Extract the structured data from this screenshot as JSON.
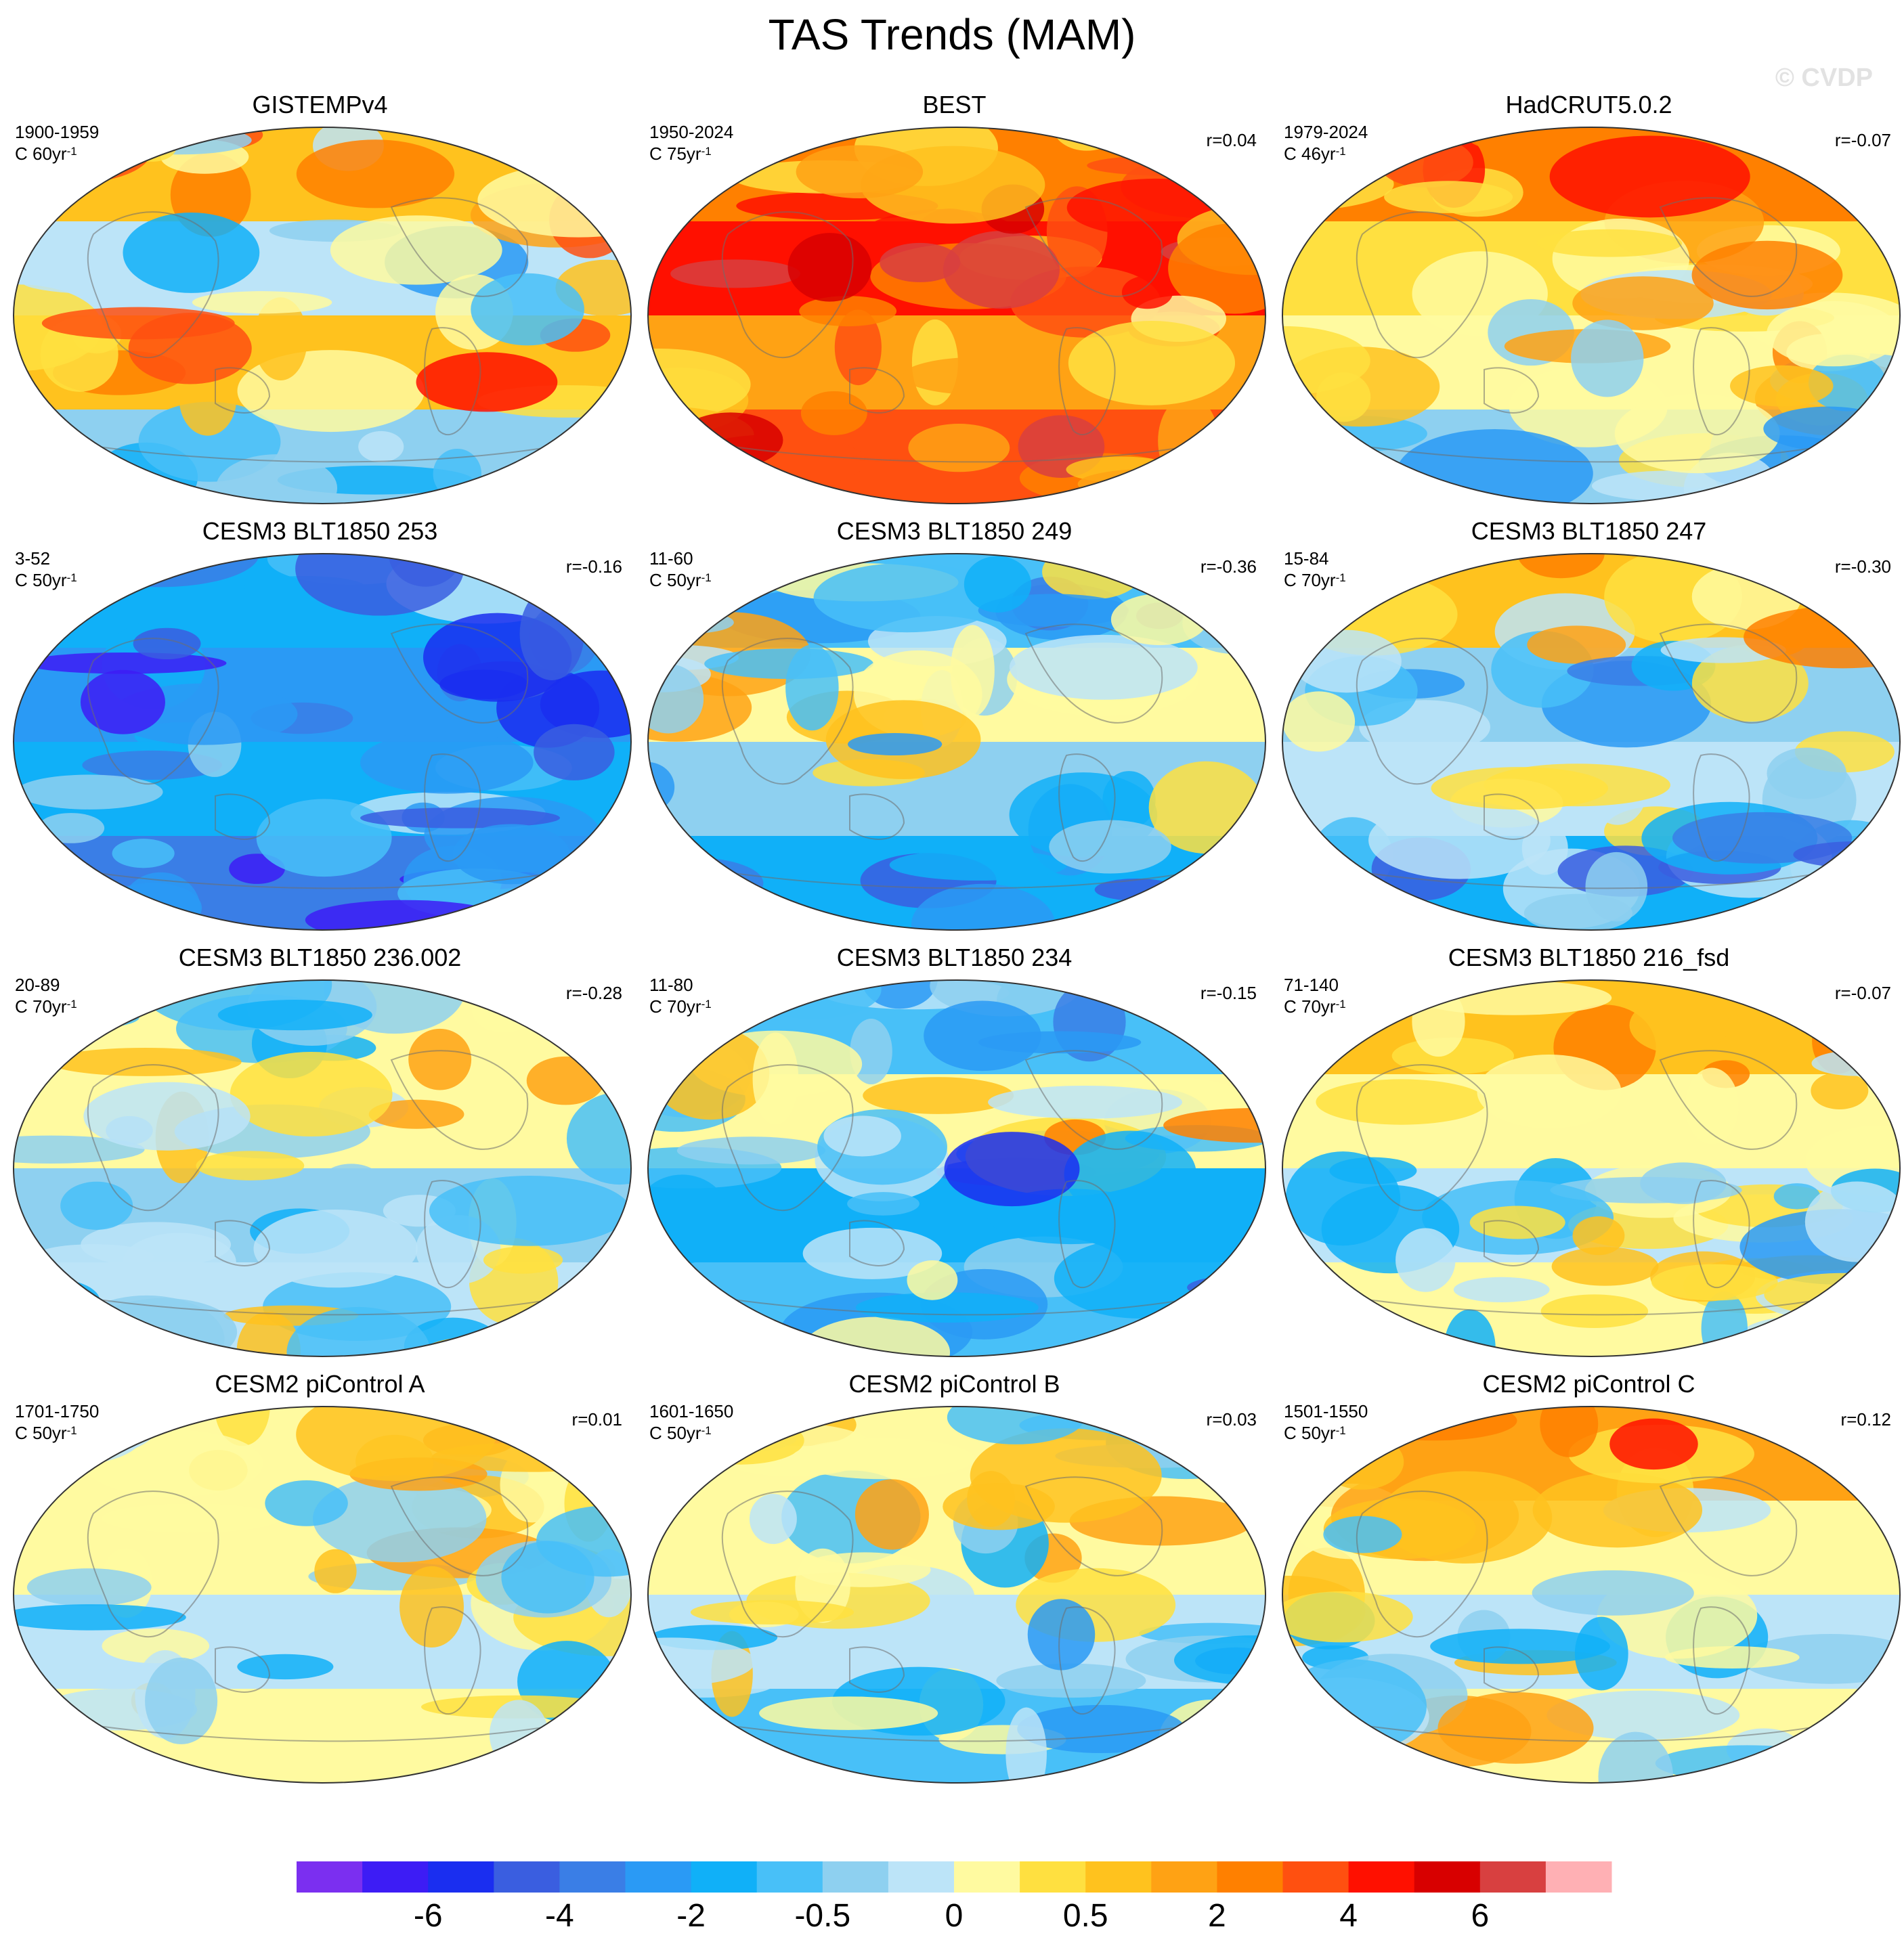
{
  "title": "TAS Trends (MAM)",
  "watermark": "© CVDP",
  "chart_data": {
    "type": "heatmap",
    "title": "TAS Trends (MAM)",
    "colorbar": {
      "tick_labels": [
        "-6",
        "-4",
        "-2",
        "-0.5",
        "0",
        "0.5",
        "2",
        "4",
        "6"
      ],
      "colors": [
        "#7b2ff0",
        "#3d1cf5",
        "#1a2ef0",
        "#3a5ee0",
        "#3a7ee6",
        "#2a9af5",
        "#10b0f8",
        "#48c0f8",
        "#8ed0f0",
        "#bce4f8",
        "#fffaa0",
        "#ffe040",
        "#ffc21e",
        "#ffa214",
        "#ff8000",
        "#ff5010",
        "#ff1000",
        "#d80000",
        "#d84040",
        "#ffb0b4"
      ]
    },
    "panels": [
      {
        "title": "GISTEMPv4",
        "period": "1900-1959",
        "units": "C 60yr",
        "units_sup": "-1",
        "r": "",
        "palette": [
          0.62,
          0.45,
          0.65,
          0.4
        ]
      },
      {
        "title": "BEST",
        "period": "1950-2024",
        "units": "C 75yr",
        "units_sup": "-1",
        "r": "r=0.04",
        "palette": [
          0.72,
          0.82,
          0.7,
          0.78
        ]
      },
      {
        "title": "HadCRUT5.0.2",
        "period": "1979-2024",
        "units": "C 46yr",
        "units_sup": "-1",
        "r": "r=-0.07",
        "palette": [
          0.72,
          0.6,
          0.55,
          0.42
        ]
      },
      {
        "title": "CESM3 BLT1850 253",
        "period": "3-52",
        "units": "C 50yr",
        "units_sup": "-1",
        "r": "r=-0.16",
        "palette": [
          0.3,
          0.25,
          0.32,
          0.22
        ]
      },
      {
        "title": "CESM3 BLT1850 249",
        "period": "11-60",
        "units": "C 50yr",
        "units_sup": "-1",
        "r": "r=-0.36",
        "palette": [
          0.38,
          0.5,
          0.42,
          0.3
        ]
      },
      {
        "title": "CESM3 BLT1850 247",
        "period": "15-84",
        "units": "C 70yr",
        "units_sup": "-1",
        "r": "r=-0.30",
        "palette": [
          0.62,
          0.4,
          0.45,
          0.3
        ]
      },
      {
        "title": "CESM3 BLT1850 236.002",
        "period": "20-89",
        "units": "C 70yr",
        "units_sup": "-1",
        "r": "r=-0.28",
        "palette": [
          0.5,
          0.52,
          0.4,
          0.48
        ]
      },
      {
        "title": "CESM3 BLT1850 234",
        "period": "11-80",
        "units": "C 70yr",
        "units_sup": "-1",
        "r": "r=-0.15",
        "palette": [
          0.36,
          0.55,
          0.3,
          0.35
        ]
      },
      {
        "title": "CESM3 BLT1850 216_fsd",
        "period": "71-140",
        "units": "C 70yr",
        "units_sup": "-1",
        "r": "r=-0.07",
        "palette": [
          0.62,
          0.55,
          0.45,
          0.5
        ]
      },
      {
        "title": "CESM2 piControl A",
        "period": "1701-1750",
        "units": "C 50yr",
        "units_sup": "-1",
        "r": "r=0.01",
        "palette": [
          0.55,
          0.52,
          0.45,
          0.5
        ]
      },
      {
        "title": "CESM2 piControl B",
        "period": "1601-1650",
        "units": "C 50yr",
        "units_sup": "-1",
        "r": "r=0.03",
        "palette": [
          0.52,
          0.5,
          0.45,
          0.38
        ]
      },
      {
        "title": "CESM2 piControl C",
        "period": "1501-1550",
        "units": "C 50yr",
        "units_sup": "-1",
        "r": "r=0.12",
        "palette": [
          0.68,
          0.52,
          0.45,
          0.5
        ]
      }
    ]
  }
}
